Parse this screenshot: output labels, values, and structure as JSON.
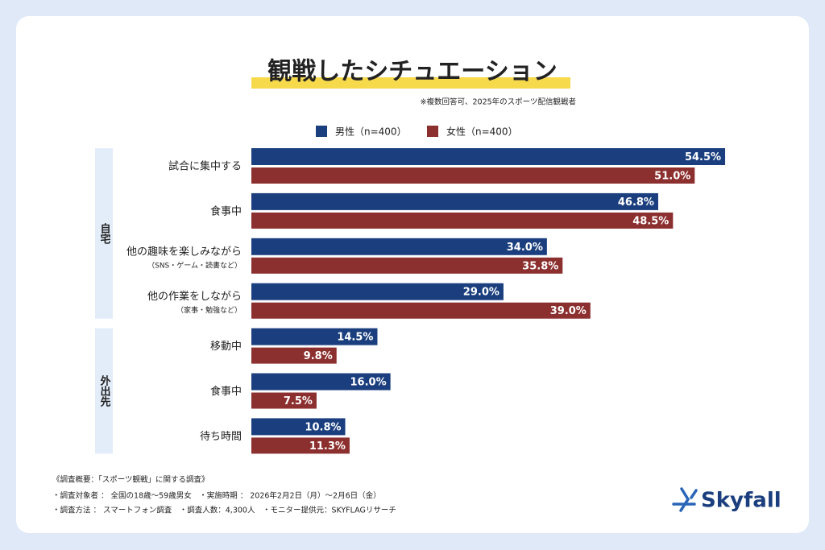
{
  "chart_data": {
    "type": "bar",
    "orientation": "horizontal",
    "title": "観戦したシチュエーション",
    "note": "※複数回答可、2025年のスポーツ配信観戦者",
    "categories": [
      "試合に集中する",
      "食事中",
      "他の趣味を楽しみながら",
      "他の作業をしながら",
      "移動中",
      "食事中",
      "待ち時間"
    ],
    "category_notes": [
      null,
      null,
      "（SNS・ゲーム・読書など）",
      "（家事・勉強など）",
      null,
      null,
      null
    ],
    "category_groups": [
      "自宅",
      "自宅",
      "自宅",
      "自宅",
      "外出先",
      "外出先",
      "外出先"
    ],
    "series": [
      {
        "name": "男性（n=400）",
        "color": "#1b3f7e",
        "values": [
          54.5,
          46.8,
          34.0,
          29.0,
          14.5,
          16.0,
          10.8
        ],
        "value_labels": [
          "54.5%",
          "46.8%",
          "34.0%",
          "29.0%",
          "14.5%",
          "16.0%",
          "10.8%"
        ]
      },
      {
        "name": "女性（n=400）",
        "color": "#8c2f2f",
        "values": [
          51.0,
          48.5,
          35.8,
          39.0,
          9.8,
          7.5,
          11.3
        ],
        "value_labels": [
          "51.0%",
          "48.5%",
          "35.8%",
          "39.0%",
          "9.8%",
          "7.5%",
          "11.3%"
        ]
      }
    ]
  },
  "footer": {
    "title": "《調査概要：「スポーツ観戦」に関する調査》",
    "lines": [
      "・調査対象者 ： 全国の18歳〜59歳男女　・実施時期 ： 2026年2月2日（月）〜2月6日（金）",
      "・調査方法 ： スマートフォン調査　・調査人数：4,300人　・モニター提供元：SKYFLAGリサーチ"
    ]
  },
  "logo": "Skyfall"
}
